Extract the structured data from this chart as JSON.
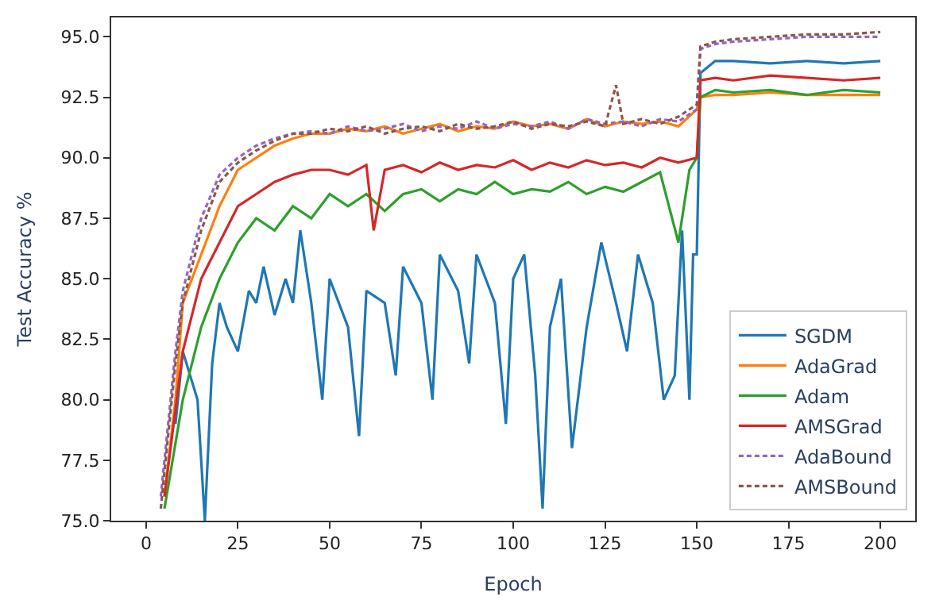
{
  "chart_data": {
    "type": "line",
    "xlabel": "Epoch",
    "ylabel": "Test Accuracy %",
    "xlim": [
      -9.5,
      209.5
    ],
    "xticks": [
      0,
      25,
      50,
      75,
      100,
      125,
      150,
      175,
      200
    ],
    "ylim": [
      75,
      95.8
    ],
    "yticks": [
      {
        "value": 75,
        "label": "75.0"
      },
      77.5,
      {
        "value": 80,
        "label": "80.0"
      },
      82.5,
      {
        "value": 85,
        "label": "85.0"
      },
      87.5,
      {
        "value": 90,
        "label": "90.0"
      },
      92.5,
      {
        "value": 95,
        "label": "95.0"
      }
    ],
    "legend": "bottom right",
    "marker": "none",
    "series": [
      {
        "name": "SGDM",
        "color": "#1f77b4",
        "line_style": "solid",
        "x": [
          8,
          10,
          12,
          14,
          16,
          18,
          20,
          22,
          25,
          28,
          30,
          32,
          35,
          38,
          40,
          42,
          45,
          48,
          50,
          55,
          58,
          60,
          65,
          68,
          70,
          75,
          78,
          80,
          85,
          88,
          90,
          95,
          98,
          100,
          103,
          106,
          108,
          110,
          113,
          116,
          120,
          124,
          128,
          131,
          134,
          138,
          141,
          144,
          146,
          148,
          149,
          150,
          151,
          155,
          160,
          170,
          180,
          190,
          200
        ],
        "values": [
          79,
          82,
          81,
          80,
          75,
          81.5,
          84,
          83,
          82,
          84.5,
          84,
          85.5,
          83.5,
          85,
          84,
          87,
          84,
          80,
          85,
          83,
          78.5,
          84.5,
          84,
          81,
          85.5,
          84,
          80,
          86,
          84.5,
          81.5,
          86,
          84,
          79,
          85,
          86,
          81,
          75.5,
          83,
          85,
          78,
          83,
          86.5,
          84,
          82,
          86,
          84,
          80,
          81,
          87,
          80,
          86,
          86,
          93.5,
          94,
          94,
          93.9,
          94,
          93.9,
          94
        ]
      },
      {
        "name": "AdaGrad",
        "color": "#ff7f0e",
        "line_style": "solid",
        "x": [
          5,
          8,
          10,
          15,
          20,
          25,
          30,
          35,
          40,
          45,
          50,
          55,
          60,
          65,
          70,
          75,
          80,
          85,
          90,
          95,
          100,
          105,
          110,
          115,
          120,
          125,
          130,
          135,
          140,
          145,
          150,
          151,
          155,
          160,
          170,
          180,
          190,
          200
        ],
        "values": [
          76,
          80,
          84,
          86,
          88,
          89.5,
          90,
          90.5,
          90.8,
          91,
          91,
          91.2,
          91.1,
          91.3,
          91,
          91.2,
          91.4,
          91.1,
          91.3,
          91.2,
          91.5,
          91.3,
          91.4,
          91.2,
          91.6,
          91.3,
          91.5,
          91.4,
          91.5,
          91.3,
          92,
          92.5,
          92.6,
          92.6,
          92.7,
          92.6,
          92.6,
          92.6
        ]
      },
      {
        "name": "Adam",
        "color": "#2ca02c",
        "line_style": "solid",
        "x": [
          5,
          10,
          15,
          20,
          25,
          30,
          35,
          40,
          45,
          50,
          55,
          60,
          65,
          70,
          75,
          80,
          85,
          90,
          95,
          100,
          105,
          110,
          115,
          120,
          125,
          130,
          135,
          140,
          145,
          148,
          150,
          151,
          155,
          160,
          170,
          180,
          190,
          200
        ],
        "values": [
          75.5,
          80,
          83,
          85,
          86.5,
          87.5,
          87,
          88,
          87.5,
          88.5,
          88,
          88.5,
          87.8,
          88.5,
          88.7,
          88.2,
          88.7,
          88.5,
          89,
          88.5,
          88.7,
          88.6,
          89,
          88.5,
          88.8,
          88.6,
          89,
          89.4,
          86.5,
          89.5,
          90,
          92.5,
          92.8,
          92.7,
          92.8,
          92.6,
          92.8,
          92.7
        ]
      },
      {
        "name": "AMSGrad",
        "color": "#d62728",
        "line_style": "solid",
        "x": [
          5,
          10,
          15,
          20,
          25,
          30,
          35,
          40,
          45,
          50,
          55,
          60,
          62,
          65,
          70,
          75,
          80,
          85,
          90,
          95,
          100,
          105,
          110,
          115,
          120,
          125,
          130,
          135,
          140,
          145,
          150,
          151,
          155,
          160,
          170,
          180,
          190,
          200
        ],
        "values": [
          76,
          82,
          85,
          86.5,
          88,
          88.5,
          89,
          89.3,
          89.5,
          89.5,
          89.3,
          89.7,
          87,
          89.5,
          89.7,
          89.4,
          89.8,
          89.5,
          89.7,
          89.6,
          89.9,
          89.5,
          89.8,
          89.6,
          89.9,
          89.7,
          89.8,
          89.6,
          90,
          89.8,
          90,
          93.2,
          93.3,
          93.2,
          93.4,
          93.3,
          93.2,
          93.3
        ]
      },
      {
        "name": "AdaBound",
        "color": "#9467bd",
        "line_style": "dashed",
        "x": [
          4,
          8,
          10,
          15,
          20,
          25,
          30,
          35,
          40,
          45,
          50,
          55,
          60,
          65,
          70,
          75,
          80,
          85,
          90,
          95,
          100,
          105,
          110,
          115,
          120,
          125,
          130,
          135,
          140,
          145,
          150,
          151,
          155,
          160,
          170,
          180,
          190,
          200
        ],
        "values": [
          76,
          82,
          84.5,
          87.5,
          89.3,
          90,
          90.5,
          90.8,
          91,
          91.1,
          91,
          91.3,
          91.1,
          91.2,
          91.4,
          91.1,
          91.3,
          91.2,
          91.5,
          91.2,
          91.4,
          91.3,
          91.5,
          91.2,
          91.6,
          91.4,
          91.5,
          91.3,
          91.6,
          91.5,
          92,
          94.5,
          94.7,
          94.8,
          94.9,
          95,
          95,
          95
        ]
      },
      {
        "name": "AMSBound",
        "color": "#8c564b",
        "line_style": "dashed",
        "x": [
          4,
          8,
          10,
          15,
          20,
          25,
          30,
          35,
          40,
          45,
          50,
          55,
          60,
          65,
          70,
          75,
          80,
          85,
          90,
          95,
          100,
          105,
          110,
          115,
          120,
          125,
          128,
          130,
          135,
          140,
          145,
          150,
          151,
          155,
          160,
          170,
          180,
          190,
          200
        ],
        "values": [
          75.5,
          81.5,
          84,
          87,
          89,
          89.8,
          90.3,
          90.7,
          91,
          91,
          91.2,
          91.1,
          91.3,
          91,
          91.2,
          91.3,
          91.1,
          91.4,
          91.2,
          91.3,
          91.5,
          91.2,
          91.4,
          91.3,
          91.5,
          91.3,
          93,
          91.4,
          91.6,
          91.4,
          91.7,
          92.2,
          94.6,
          94.8,
          94.9,
          95,
          95.1,
          95.1,
          95.2
        ]
      }
    ]
  }
}
